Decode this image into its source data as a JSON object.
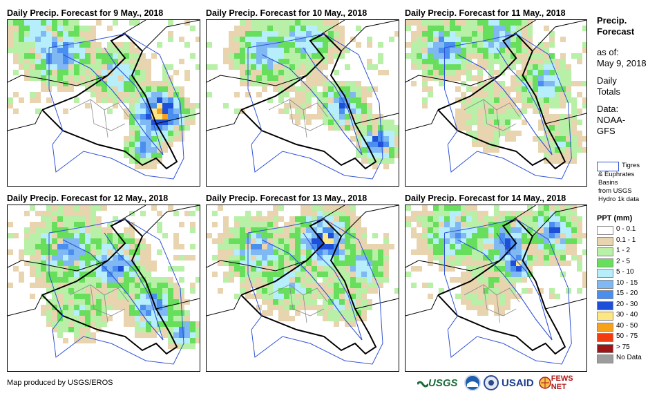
{
  "panels": [
    {
      "title": "Daily Precip. Forecast for 9 May., 2018"
    },
    {
      "title": "Daily Precip. Forecast for 10 May., 2018"
    },
    {
      "title": "Daily Precip. Forecast for 11 May., 2018"
    },
    {
      "title": "Daily Precip. Forecast for 12 May., 2018"
    },
    {
      "title": "Daily Precip. Forecast for 13 May., 2018"
    },
    {
      "title": "Daily Precip. Forecast for 14 May., 2018"
    }
  ],
  "side": {
    "title_l1": "Precip.",
    "title_l2": "Forecast",
    "asof_l1": "as of:",
    "asof_l2": "May 9, 2018",
    "daily_l1": "Daily",
    "daily_l2": "Totals",
    "data_l1": "Data:",
    "data_l2": "NOAA-",
    "data_l3": "GFS"
  },
  "basin_key": {
    "l1": "Tigres",
    "l2": "& Euphrates",
    "l3": "Basins",
    "l4": "from USGS",
    "l5": "Hydro 1k data"
  },
  "legend": {
    "title": "PPT (mm)",
    "items": [
      {
        "label": "0 - 0.1",
        "color": "#ffffff"
      },
      {
        "label": "0.1 - 1",
        "color": "#e8d5b0"
      },
      {
        "label": "1 - 2",
        "color": "#b7f0a6"
      },
      {
        "label": "2 - 5",
        "color": "#67df5c"
      },
      {
        "label": "5 - 10",
        "color": "#b6eefb"
      },
      {
        "label": "10 - 15",
        "color": "#7fb8f2"
      },
      {
        "label": "15 - 20",
        "color": "#4a8ef0"
      },
      {
        "label": "20 - 30",
        "color": "#1d4fd8"
      },
      {
        "label": "30 - 40",
        "color": "#fde784"
      },
      {
        "label": "40 - 50",
        "color": "#f8a21c"
      },
      {
        "label": "50 - 75",
        "color": "#f23c10"
      },
      {
        "label": "> 75",
        "color": "#9e1414"
      },
      {
        "label": "No Data",
        "color": "#9c9c9c"
      }
    ]
  },
  "credit": "Map produced by USGS/EROS",
  "logos": {
    "usgs": "USGS",
    "usaid": "USAID",
    "fews": "FEWS NET"
  },
  "colors": {
    "border": "#000000",
    "river": "#2f52d6",
    "admin": "#8a8a8a"
  }
}
